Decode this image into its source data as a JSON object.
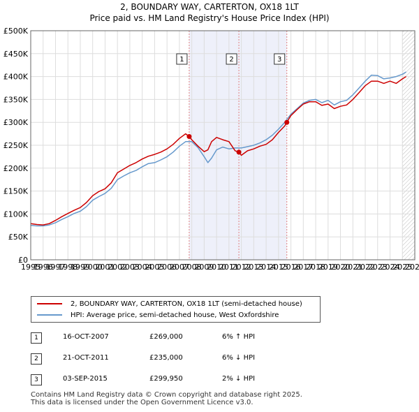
{
  "title_line1": "2, BOUNDARY WAY, CARTERTON, OX18 1LT",
  "title_line2": "Price paid vs. HM Land Registry's House Price Index (HPI)",
  "colors": {
    "property": "#cc0000",
    "hpi": "#6699cc",
    "band": "#eef0fa",
    "marker_line": "#e08080"
  },
  "chart_data": {
    "type": "line",
    "title": "Price paid vs. HM Land Registry's House Price Index (HPI)",
    "xlim": [
      1995,
      2026
    ],
    "ylim": [
      0,
      500000
    ],
    "x_ticks": [
      1995,
      1996,
      1997,
      1998,
      1999,
      2000,
      2001,
      2002,
      2003,
      2004,
      2005,
      2006,
      2007,
      2008,
      2009,
      2010,
      2011,
      2012,
      2013,
      2014,
      2015,
      2016,
      2017,
      2018,
      2019,
      2020,
      2021,
      2022,
      2023,
      2024,
      2025,
      2026
    ],
    "y_ticks": [
      {
        "value": 0,
        "label": "£0"
      },
      {
        "value": 50000,
        "label": "£50K"
      },
      {
        "value": 100000,
        "label": "£100K"
      },
      {
        "value": 150000,
        "label": "£150K"
      },
      {
        "value": 200000,
        "label": "£200K"
      },
      {
        "value": 250000,
        "label": "£250K"
      },
      {
        "value": 300000,
        "label": "£300K"
      },
      {
        "value": 350000,
        "label": "£350K"
      },
      {
        "value": 400000,
        "label": "£400K"
      },
      {
        "value": 450000,
        "label": "£450K"
      },
      {
        "value": 500000,
        "label": "£500K"
      }
    ],
    "series": [
      {
        "name": "2, BOUNDARY WAY, CARTERTON, OX18 1LT (semi-detached house)",
        "x": [
          1995.0,
          1995.5,
          1996.0,
          1996.5,
          1997.0,
          1997.5,
          1998.0,
          1998.5,
          1999.0,
          1999.5,
          2000.0,
          2000.5,
          2001.0,
          2001.5,
          2002.0,
          2002.5,
          2003.0,
          2003.5,
          2004.0,
          2004.5,
          2005.0,
          2005.5,
          2006.0,
          2006.5,
          2007.0,
          2007.5,
          2007.79,
          2008.0,
          2008.5,
          2009.0,
          2009.3,
          2009.6,
          2010.0,
          2010.5,
          2011.0,
          2011.5,
          2011.8,
          2012.0,
          2012.5,
          2013.0,
          2013.5,
          2014.0,
          2014.5,
          2015.0,
          2015.5,
          2015.67,
          2016.0,
          2016.5,
          2017.0,
          2017.5,
          2018.0,
          2018.5,
          2019.0,
          2019.5,
          2020.0,
          2020.5,
          2021.0,
          2021.5,
          2022.0,
          2022.5,
          2023.0,
          2023.5,
          2024.0,
          2024.5,
          2025.0,
          2025.3
        ],
        "values": [
          79000,
          77000,
          76000,
          79000,
          86000,
          94000,
          101000,
          108000,
          114000,
          125000,
          140000,
          149000,
          155000,
          168000,
          190000,
          198000,
          206000,
          212000,
          220000,
          226000,
          230000,
          235000,
          242000,
          252000,
          265000,
          275000,
          269000,
          262000,
          248000,
          236000,
          240000,
          258000,
          267000,
          262000,
          258000,
          238000,
          235000,
          228000,
          238000,
          242000,
          248000,
          252000,
          262000,
          278000,
          292000,
          299950,
          315000,
          328000,
          340000,
          345000,
          345000,
          337000,
          340000,
          330000,
          335000,
          338000,
          350000,
          365000,
          380000,
          390000,
          390000,
          385000,
          390000,
          385000,
          395000,
          400000
        ]
      },
      {
        "name": "HPI: Average price, semi-detached house, West Oxfordshire",
        "x": [
          1995.0,
          1995.5,
          1996.0,
          1996.5,
          1997.0,
          1997.5,
          1998.0,
          1998.5,
          1999.0,
          1999.5,
          2000.0,
          2000.5,
          2001.0,
          2001.5,
          2002.0,
          2002.5,
          2003.0,
          2003.5,
          2004.0,
          2004.5,
          2005.0,
          2005.5,
          2006.0,
          2006.5,
          2007.0,
          2007.5,
          2008.0,
          2008.5,
          2009.0,
          2009.3,
          2009.6,
          2010.0,
          2010.5,
          2011.0,
          2011.5,
          2012.0,
          2012.5,
          2013.0,
          2013.5,
          2014.0,
          2014.5,
          2015.0,
          2015.5,
          2016.0,
          2016.5,
          2017.0,
          2017.5,
          2018.0,
          2018.5,
          2019.0,
          2019.5,
          2020.0,
          2020.5,
          2021.0,
          2021.5,
          2022.0,
          2022.5,
          2023.0,
          2023.5,
          2024.0,
          2024.5,
          2025.0,
          2025.3
        ],
        "values": [
          75000,
          74000,
          74000,
          76000,
          81000,
          88000,
          94000,
          101000,
          106000,
          116000,
          130000,
          138000,
          145000,
          156000,
          175000,
          183000,
          190000,
          195000,
          203000,
          210000,
          212000,
          218000,
          225000,
          235000,
          248000,
          258000,
          258000,
          245000,
          225000,
          212000,
          222000,
          240000,
          246000,
          242000,
          244000,
          244000,
          247000,
          250000,
          255000,
          262000,
          272000,
          285000,
          300000,
          318000,
          330000,
          342000,
          348000,
          350000,
          343000,
          348000,
          338000,
          345000,
          348000,
          360000,
          375000,
          390000,
          403000,
          402000,
          395000,
          397000,
          400000,
          405000,
          410000
        ]
      }
    ],
    "sales": [
      {
        "id": "1",
        "x": 2007.79,
        "value": 269000
      },
      {
        "id": "2",
        "x": 2011.8,
        "value": 235000
      },
      {
        "id": "3",
        "x": 2015.67,
        "value": 299950
      }
    ],
    "hpi_band": [
      2007.79,
      2015.67
    ],
    "future_start": 2025.0,
    "legend_position": "below"
  },
  "legend": {
    "property": "2, BOUNDARY WAY, CARTERTON, OX18 1LT (semi-detached house)",
    "hpi": "HPI: Average price, semi-detached house, West Oxfordshire"
  },
  "sales_table": [
    {
      "num": "1",
      "date": "16-OCT-2007",
      "price": "£269,000",
      "hpi": "6% ↑ HPI"
    },
    {
      "num": "2",
      "date": "21-OCT-2011",
      "price": "£235,000",
      "hpi": "6% ↓ HPI"
    },
    {
      "num": "3",
      "date": "03-SEP-2015",
      "price": "£299,950",
      "hpi": "2% ↓ HPI"
    }
  ],
  "footer_line1": "Contains HM Land Registry data © Crown copyright and database right 2025.",
  "footer_line2": "This data is licensed under the Open Government Licence v3.0."
}
